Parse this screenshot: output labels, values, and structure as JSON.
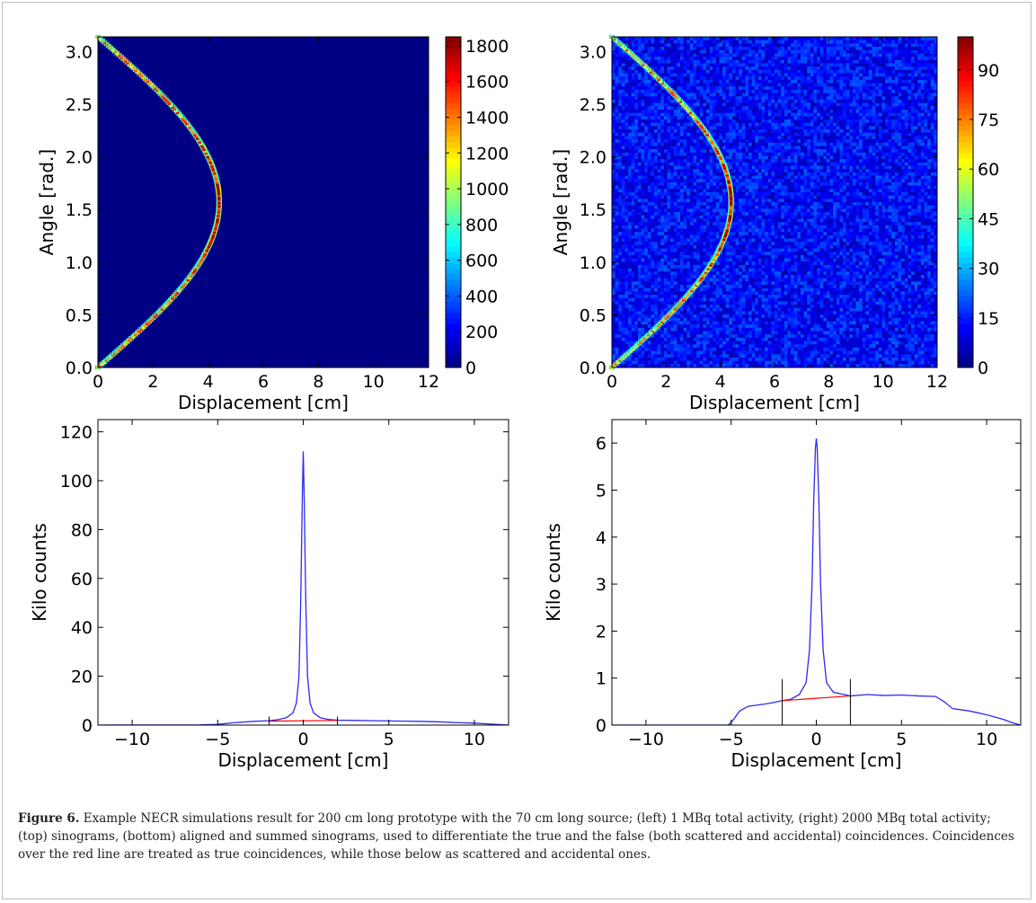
{
  "caption": {
    "label": "Figure 6.",
    "text": "Example NECR simulations result for 200 cm long prototype with the 70 cm long source; (left) 1 MBq total activity, (right) 2000 MBq total activity; (top) sinograms, (bottom) aligned and summed sinograms, used to differentiate the true and the false (both scattered and accidental) coincidences. Coincidences over the red line are treated as true coincidences, while those below as scattered and accidental ones."
  },
  "chart_data": [
    {
      "id": "sinogram-left",
      "type": "heatmap",
      "xlabel": "Displacement [cm]",
      "ylabel": "Angle [rad.]",
      "xlim": [
        0,
        12
      ],
      "ylim": [
        0,
        3.14
      ],
      "xticks": [
        0,
        2,
        4,
        6,
        8,
        10,
        12
      ],
      "yticks": [
        0.0,
        0.5,
        1.0,
        1.5,
        2.0,
        2.5,
        3.0
      ],
      "colorbar": {
        "ticks": [
          0,
          200,
          400,
          600,
          800,
          1000,
          1200,
          1400,
          1600,
          1800
        ],
        "max": 1850,
        "colormap": "jet"
      },
      "curve": {
        "description": "sinusoidal source trace",
        "amplitude_cm": 4.4,
        "peak_angle_rad": 1.57,
        "peak_value": 1800,
        "background": 10
      },
      "grid": false
    },
    {
      "id": "sinogram-right",
      "type": "heatmap",
      "xlabel": "Displacement [cm]",
      "ylabel": "Angle [rad.]",
      "xlim": [
        0,
        12
      ],
      "ylim": [
        0,
        3.14
      ],
      "xticks": [
        0,
        2,
        4,
        6,
        8,
        10,
        12
      ],
      "yticks": [
        0.0,
        0.5,
        1.0,
        1.5,
        2.0,
        2.5,
        3.0
      ],
      "colorbar": {
        "ticks": [
          0,
          15,
          30,
          45,
          60,
          75,
          90
        ],
        "max": 100,
        "colormap": "jet"
      },
      "curve": {
        "description": "sinusoidal source trace",
        "amplitude_cm": 4.4,
        "peak_angle_rad": 1.57,
        "peak_value": 95,
        "background": 13
      },
      "grid": false
    },
    {
      "id": "profile-left",
      "type": "line",
      "xlabel": "Displacement [cm]",
      "ylabel": "Kilo counts",
      "xlim": [
        -12,
        12
      ],
      "ylim": [
        0,
        125
      ],
      "xticks": [
        -10,
        -5,
        0,
        5,
        10
      ],
      "yticks": [
        0,
        20,
        40,
        60,
        80,
        100,
        120
      ],
      "series": [
        {
          "color": "#2b2bf2",
          "x": [
            -12,
            -6,
            -5,
            -4,
            -3,
            -2,
            -1.5,
            -1,
            -0.6,
            -0.4,
            -0.25,
            -0.15,
            -0.05,
            0,
            0.05,
            0.15,
            0.25,
            0.4,
            0.6,
            1,
            1.5,
            2,
            3,
            4,
            5,
            6,
            7,
            8,
            9,
            10,
            11,
            11.5,
            12
          ],
          "y": [
            0,
            0.1,
            0.3,
            1.0,
            1.5,
            1.8,
            2.2,
            3.0,
            5.0,
            9.0,
            20.0,
            50.0,
            95.0,
            112.0,
            95.0,
            50.0,
            20.0,
            9.0,
            5.0,
            3.0,
            2.3,
            2.0,
            1.9,
            1.8,
            1.7,
            1.6,
            1.5,
            1.3,
            1.0,
            0.8,
            0.4,
            0.2,
            0
          ]
        }
      ],
      "red_line": {
        "color": "#ff0000",
        "x": [
          -2,
          2
        ],
        "y": [
          1.6,
          1.9
        ]
      },
      "markers": {
        "x": [
          -2,
          2
        ],
        "top": 3.5
      },
      "grid": false
    },
    {
      "id": "profile-right",
      "type": "line",
      "xlabel": "Displacement [cm]",
      "ylabel": "Kilo counts",
      "xlim": [
        -12,
        12
      ],
      "ylim": [
        0,
        6.5
      ],
      "xticks": [
        -10,
        -5,
        0,
        5,
        10
      ],
      "yticks": [
        0,
        1,
        2,
        3,
        4,
        5,
        6
      ],
      "series": [
        {
          "color": "#2b2bf2",
          "x": [
            -12,
            -5.2,
            -5,
            -4.5,
            -4,
            -3,
            -2.5,
            -2,
            -1.5,
            -1,
            -0.6,
            -0.4,
            -0.25,
            -0.15,
            -0.05,
            0,
            0.05,
            0.15,
            0.25,
            0.4,
            0.6,
            1,
            1.5,
            2,
            3,
            4,
            5,
            6,
            7,
            7.5,
            8,
            9,
            10,
            11,
            11.5,
            12
          ],
          "y": [
            0,
            0,
            0.05,
            0.3,
            0.4,
            0.45,
            0.48,
            0.52,
            0.55,
            0.65,
            0.9,
            1.6,
            3.0,
            4.8,
            5.9,
            6.1,
            5.9,
            4.8,
            3.0,
            1.6,
            0.9,
            0.7,
            0.66,
            0.62,
            0.65,
            0.63,
            0.64,
            0.62,
            0.61,
            0.5,
            0.35,
            0.3,
            0.22,
            0.12,
            0.05,
            0
          ]
        }
      ],
      "red_line": {
        "color": "#ff0000",
        "x": [
          -2,
          2
        ],
        "y": [
          0.52,
          0.62
        ]
      },
      "markers": {
        "x": [
          -2,
          2
        ],
        "top": 0.98
      },
      "grid": false
    }
  ]
}
